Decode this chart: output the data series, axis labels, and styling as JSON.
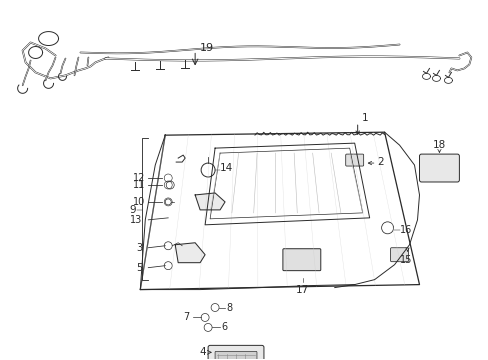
{
  "bg_color": "#ffffff",
  "fig_width": 4.89,
  "fig_height": 3.6,
  "dpi": 100,
  "line_color": "#2a2a2a",
  "lw": 0.7
}
